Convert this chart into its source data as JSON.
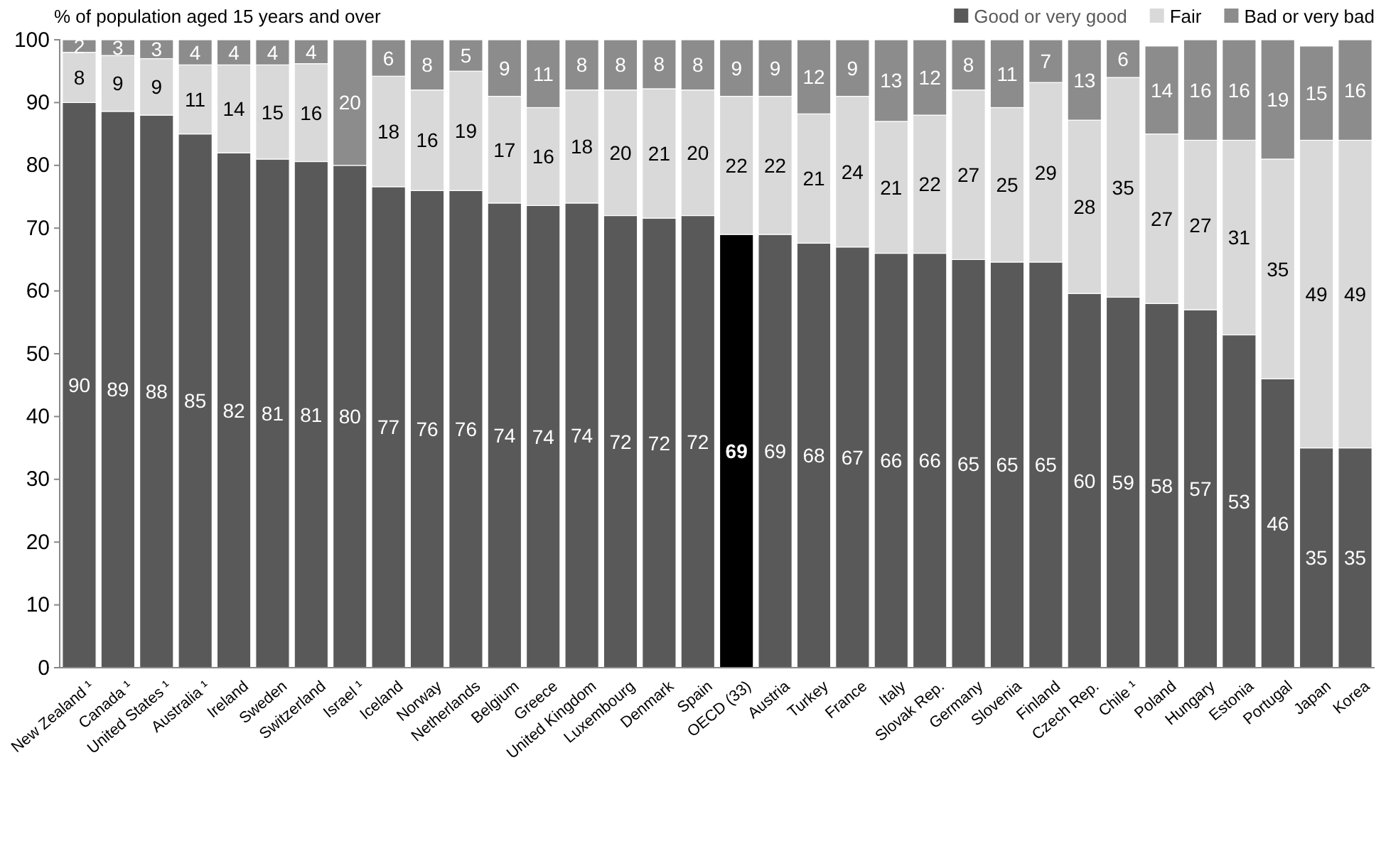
{
  "chart_data": {
    "type": "bar",
    "stacked": true,
    "ylabel": "% of population aged 15 years and over",
    "categories": [
      "New Zealand ¹",
      "Canada ¹",
      "United States ¹",
      "Australia ¹",
      "Ireland",
      "Sweden",
      "Switzerland",
      "Israel ¹",
      "Iceland",
      "Norway",
      "Netherlands",
      "Belgium",
      "Greece",
      "United Kingdom",
      "Luxembourg",
      "Denmark",
      "Spain",
      "OECD (33)",
      "Austria",
      "Turkey",
      "France",
      "Italy",
      "Slovak Rep.",
      "Germany",
      "Slovenia",
      "Finland",
      "Czech Rep.",
      "Chile ¹",
      "Poland",
      "Hungary",
      "Estonia",
      "Portugal",
      "Japan",
      "Korea"
    ],
    "series": [
      {
        "name": "Good or very good",
        "color": "#595959",
        "colors": [
          "#595959",
          "#595959",
          "#595959",
          "#595959",
          "#595959",
          "#595959",
          "#595959",
          "#595959",
          "#595959",
          "#595959",
          "#595959",
          "#595959",
          "#595959",
          "#595959",
          "#595959",
          "#595959",
          "#595959",
          "#000000",
          "#595959",
          "#595959",
          "#595959",
          "#595959",
          "#595959",
          "#595959",
          "#595959",
          "#595959",
          "#595959",
          "#595959",
          "#595959",
          "#595959",
          "#595959",
          "#595959",
          "#595959",
          "#595959"
        ],
        "values": [
          90,
          88.6,
          88,
          85,
          82,
          81,
          80.6,
          80,
          76.6,
          76,
          76,
          74,
          73.6,
          74,
          72,
          71.6,
          72,
          69,
          69,
          67.6,
          67,
          66,
          66,
          65,
          64.6,
          64.6,
          59.6,
          59,
          58,
          57,
          53,
          46,
          35,
          35
        ],
        "value_labels": [
          "90",
          "89",
          "88",
          "85",
          "82",
          "81",
          "81",
          "80",
          "77",
          "76",
          "76",
          "74",
          "74",
          "74",
          "72",
          "72",
          "72",
          "69",
          "69",
          "68",
          "67",
          "66",
          "66",
          "65",
          "65",
          "65",
          "60",
          "59",
          "58",
          "57",
          "53",
          "46",
          "35",
          "35"
        ]
      },
      {
        "name": "Fair",
        "color": "#d9d9d9",
        "values": [
          8,
          8.9,
          9,
          11,
          14,
          15,
          15.6,
          null,
          17.6,
          16,
          19,
          17,
          15.6,
          18,
          20,
          20.6,
          20,
          22,
          22,
          20.6,
          24,
          21,
          22,
          27,
          24.6,
          28.6,
          27.6,
          35,
          27,
          27,
          31,
          35,
          49,
          49
        ],
        "value_labels": [
          "8",
          "9",
          "9",
          "11",
          "14",
          "15",
          "16",
          null,
          "18",
          "16",
          "19",
          "17",
          "16",
          "18",
          "20",
          "21",
          "20",
          "22",
          "22",
          "21",
          "24",
          "21",
          "22",
          "27",
          "25",
          "29",
          "28",
          "35",
          "27",
          "27",
          "31",
          "35",
          "49",
          "49"
        ]
      },
      {
        "name": "Bad or very bad",
        "color": "#8c8c8c",
        "values": [
          2,
          2.5,
          3,
          4,
          4,
          4,
          3.8,
          20,
          5.8,
          8,
          5,
          9,
          10.8,
          8,
          8,
          7.8,
          8,
          9,
          9,
          11.8,
          9,
          13,
          12,
          8,
          10.8,
          6.8,
          12.8,
          6,
          14,
          16,
          16,
          19,
          15,
          16
        ],
        "value_labels": [
          "2",
          "3",
          "3",
          "4",
          "4",
          "4",
          "4",
          "20",
          "6",
          "8",
          "5",
          "9",
          "11",
          "8",
          "8",
          "8",
          "8",
          "9",
          "9",
          "12",
          "9",
          "13",
          "12",
          "8",
          "11",
          "7",
          "13",
          "6",
          "14",
          "16",
          "16",
          "19",
          "15",
          "16"
        ]
      }
    ],
    "ylim": [
      0,
      100
    ],
    "yticks": [
      0,
      10,
      20,
      30,
      40,
      50,
      60,
      70,
      80,
      90,
      100
    ],
    "grid": false,
    "legend": "top right"
  }
}
